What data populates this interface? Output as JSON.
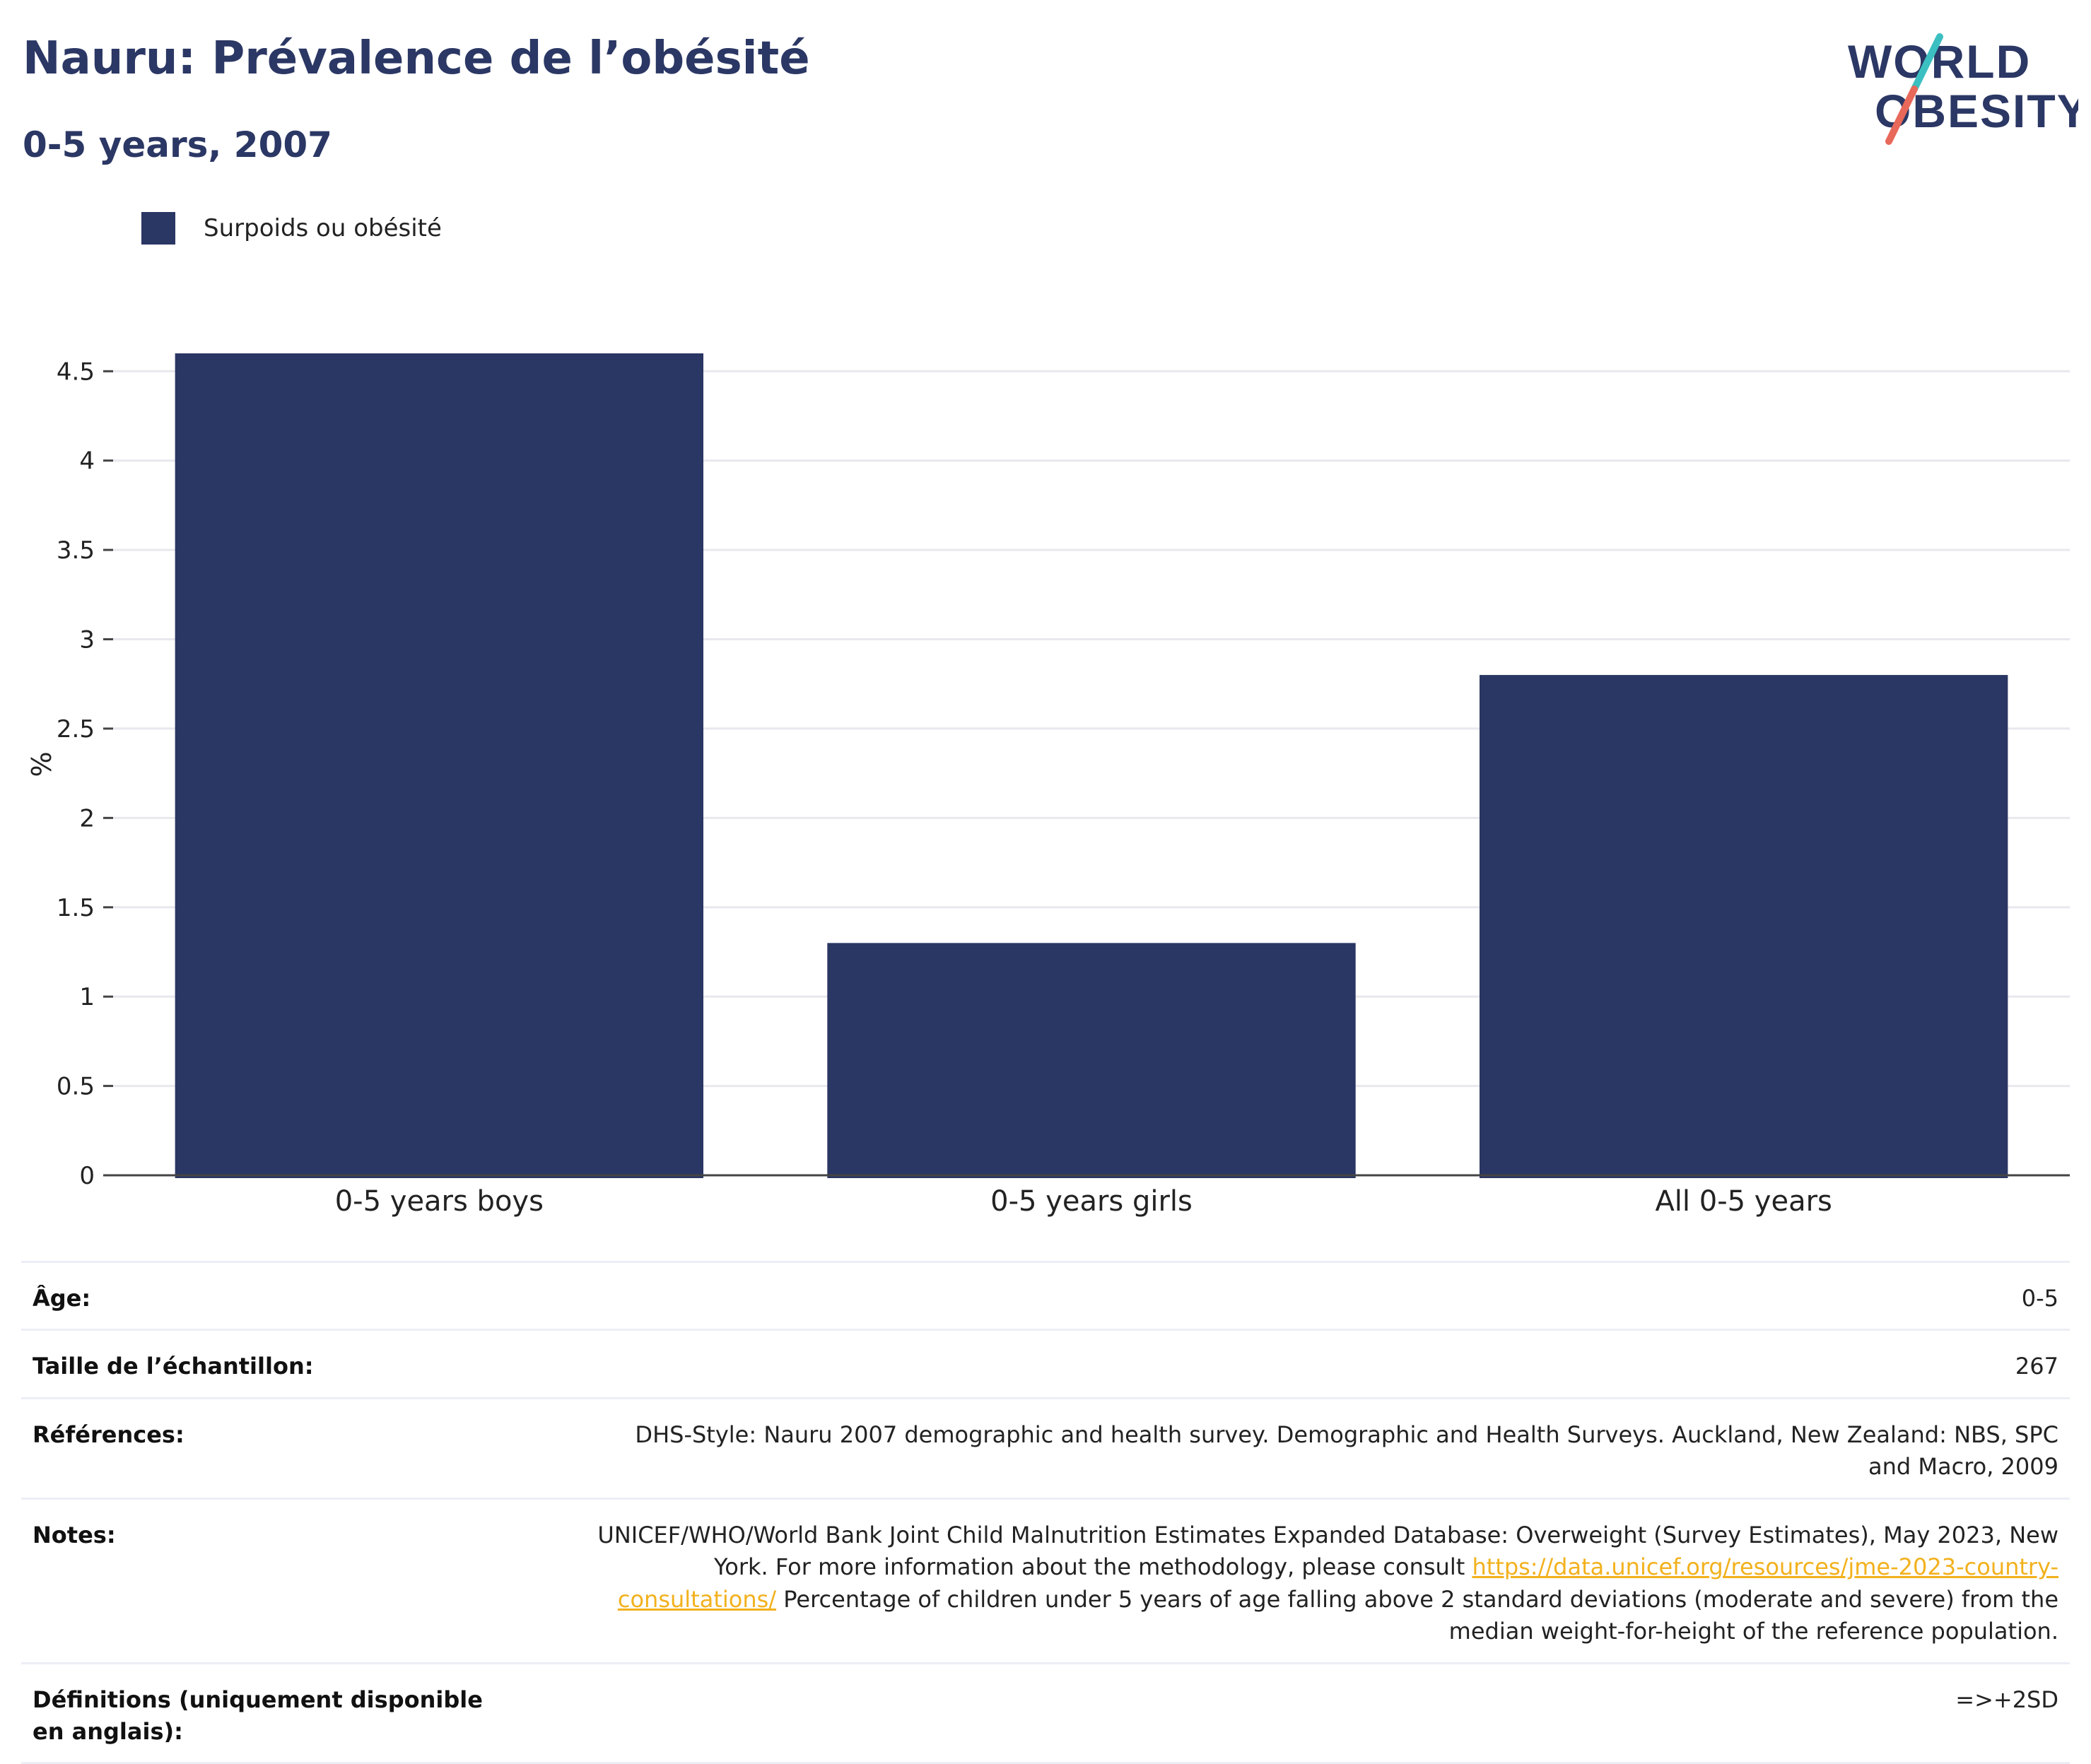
{
  "header": {
    "title": "Nauru: Prévalence de l’obésité",
    "subtitle": "0-5 years, 2007"
  },
  "logo": {
    "line1": "WORLD",
    "line2": "OBESITY",
    "colors": {
      "text": "#2b3764",
      "slash_top": "#3cbfc1",
      "slash_bottom": "#e8685a"
    }
  },
  "legend": {
    "label": "Surpoids ou obésité",
    "color": "#2a3663"
  },
  "chart_data": {
    "type": "bar",
    "categories": [
      "0-5 years boys",
      "0-5 years girls",
      "All 0-5 years"
    ],
    "series": [
      {
        "name": "Surpoids ou obésité",
        "values": [
          4.6,
          1.3,
          2.8
        ]
      }
    ],
    "ylabel": "%",
    "xlabel": "",
    "ylim": [
      0,
      4.6
    ],
    "yticks": [
      0,
      0.5,
      1,
      1.5,
      2,
      2.5,
      3,
      3.5,
      4,
      4.5
    ],
    "ytick_labels": [
      "0",
      "0.5",
      "1",
      "1.5",
      "2",
      "2.5",
      "3",
      "3.5",
      "4",
      "4.5"
    ],
    "grid": true,
    "legend_position": "top-left",
    "bar_color": "#2a3663"
  },
  "meta": {
    "age": {
      "label": "Âge:",
      "value": "0-5"
    },
    "sample": {
      "label": "Taille de l’échantillon:",
      "value": "267"
    },
    "references": {
      "label": "Références:",
      "value": "DHS-Style: Nauru 2007 demographic and health survey. Demographic and Health Surveys. Auckland, New Zealand: NBS, SPC and Macro, 2009"
    },
    "notes": {
      "label": "Notes:",
      "text_before": "UNICEF/WHO/World Bank Joint Child Malnutrition Estimates Expanded Database: Overweight (Survey Estimates), May 2023, New York. For more information about the methodology, please consult ",
      "link": "https://data.unicef.org/resources/jme-2023-country-consultations/",
      "text_after": " Percentage of children under 5 years of age falling above 2 standard deviations (moderate and severe) from the median weight-for-height of the reference population."
    },
    "definitions": {
      "label": "Définitions (uniquement disponible en anglais):",
      "value": "=>+2SD"
    }
  }
}
